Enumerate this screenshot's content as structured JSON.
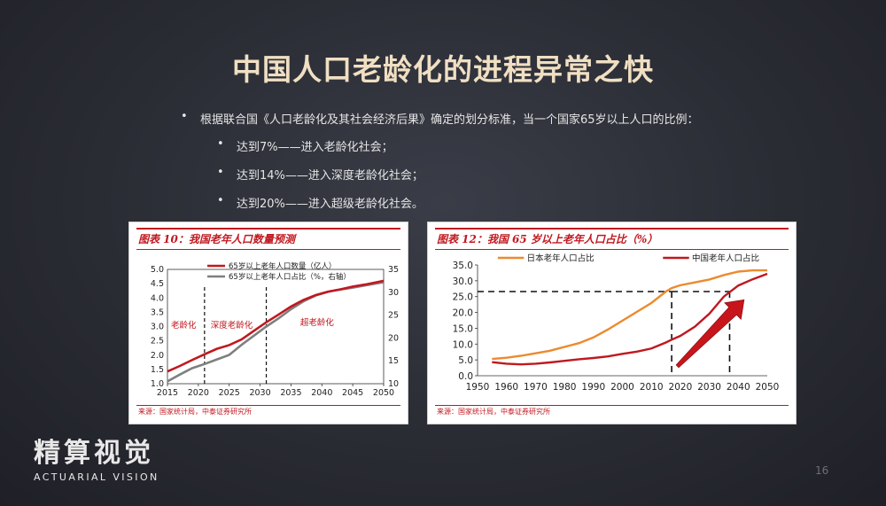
{
  "slide": {
    "title": "中国人口老龄化的进程异常之快",
    "page_number": "16",
    "bullets": {
      "main": "根据联合国《人口老龄化及其社会经济后果》确定的划分标准，当一个国家65岁以上人口的比例：",
      "sub": [
        "达到7%——进入老龄化社会；",
        "达到14%——进入深度老龄化社会；",
        "达到20%——进入超级老龄化社会。"
      ],
      "bullet_glyph": "•"
    },
    "logo": {
      "cn": "精算视觉",
      "en": "ACTUARIAL VISION"
    }
  },
  "figures": {
    "left": {
      "title": "图表 10：我国老年人口数量预测",
      "source": "来源：国家统计局，中泰证券研究所",
      "legend": [
        "65岁以上老年人口数量（亿人）",
        "65岁以上老年人口占比（%，右轴）"
      ],
      "region_labels": [
        "老龄化",
        "深度老龄化",
        "超老龄化"
      ],
      "x_ticks": [
        "2015",
        "2020",
        "2025",
        "2030",
        "2035",
        "2040",
        "2045",
        "2050"
      ],
      "y_left_ticks": [
        "1.0",
        "1.5",
        "2.0",
        "2.5",
        "3.0",
        "3.5",
        "4.0",
        "4.5",
        "5.0"
      ],
      "y_right_ticks": [
        "10",
        "15",
        "20",
        "25",
        "30",
        "35"
      ]
    },
    "right": {
      "title": "图表 12：我国 65 岁以上老年人口占比（%）",
      "source": "来源：国家统计局，中泰证券研究所",
      "legend": [
        "日本老年人口占比",
        "中国老年人口占比"
      ],
      "x_ticks": [
        "1950",
        "1960",
        "1970",
        "1980",
        "1990",
        "2000",
        "2010",
        "2020",
        "2030",
        "2040",
        "2050"
      ],
      "y_ticks": [
        "0.0",
        "5.0",
        "10.0",
        "15.0",
        "20.0",
        "25.0",
        "30.0",
        "35.0"
      ]
    }
  },
  "colors": {
    "red": "#c0181f",
    "gray": "#7f7f7f",
    "orange": "#ec8a2e",
    "title": "#f0dfc2"
  },
  "chart_data": [
    {
      "type": "line",
      "title": "图表 10：我国老年人口数量预测",
      "x": [
        2015,
        2017,
        2019,
        2021,
        2023,
        2025,
        2027,
        2029,
        2031,
        2033,
        2035,
        2037,
        2039,
        2041,
        2043,
        2045,
        2047,
        2050
      ],
      "series": [
        {
          "name": "65岁以上老年人口数量（亿人）",
          "axis": "left",
          "values": [
            1.43,
            1.62,
            1.83,
            2.03,
            2.22,
            2.35,
            2.55,
            2.85,
            3.15,
            3.42,
            3.7,
            3.93,
            4.1,
            4.22,
            4.3,
            4.4,
            4.47,
            4.6
          ]
        },
        {
          "name": "65岁以上老年人口占比（%，右轴）",
          "axis": "right",
          "values": [
            10.5,
            12.0,
            13.4,
            14.3,
            15.3,
            16.3,
            18.5,
            20.5,
            22.5,
            24.3,
            26.3,
            28.0,
            29.3,
            30.1,
            30.6,
            31.0,
            31.5,
            32.2
          ]
        }
      ],
      "xlim": [
        2015,
        2050
      ],
      "ylim": [
        1.0,
        5.0
      ],
      "y2lim": [
        10,
        35
      ],
      "vlines": [
        2021,
        2031
      ],
      "legend_position": "top-left"
    },
    {
      "type": "line",
      "title": "图表 12：我国 65 岁以上老年人口占比（%）",
      "x": [
        1955,
        1960,
        1965,
        1970,
        1975,
        1980,
        1985,
        1990,
        1995,
        2000,
        2005,
        2010,
        2015,
        2017,
        2020,
        2025,
        2030,
        2035,
        2040,
        2045,
        2050
      ],
      "series": [
        {
          "name": "日本老年人口占比",
          "values": [
            5.3,
            5.7,
            6.3,
            7.1,
            7.9,
            9.1,
            10.3,
            12.1,
            14.6,
            17.4,
            20.2,
            23.0,
            26.6,
            27.7,
            28.6,
            29.5,
            30.4,
            31.8,
            32.9,
            33.3,
            33.3
          ]
        },
        {
          "name": "中国老年人口占比",
          "values": [
            4.3,
            3.8,
            3.6,
            3.8,
            4.2,
            4.7,
            5.2,
            5.6,
            6.1,
            6.9,
            7.6,
            8.6,
            10.5,
            11.4,
            12.6,
            15.5,
            19.6,
            25.0,
            28.5,
            30.5,
            32.2
          ]
        }
      ],
      "xlim": [
        1950,
        2050
      ],
      "ylim": [
        0,
        35
      ],
      "hline": 26.6,
      "vlines": [
        2017,
        2037
      ],
      "annotation": "arrow",
      "legend_position": "top"
    }
  ]
}
